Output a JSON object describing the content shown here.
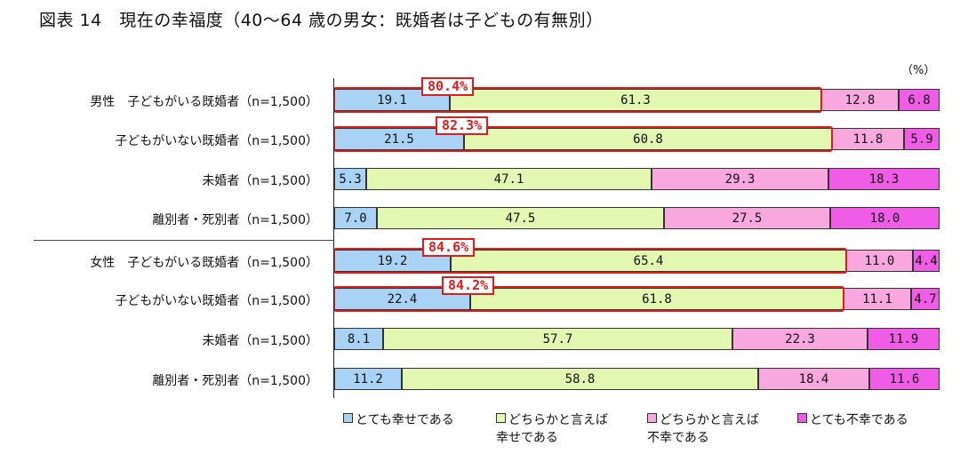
{
  "title": "図表 14　現在の幸福度（40～64 歳の男女：既婚者は子どもの有無別）",
  "unit": "（%）",
  "colors": {
    "series": [
      "#a9d3f5",
      "#e2f7b0",
      "#f8a8df",
      "#f05ce6"
    ],
    "highlight": "#e21b1b"
  },
  "chart_data": {
    "type": "bar",
    "orientation": "horizontal-stacked-100",
    "categories": [
      "男性　子どもがいる既婚者（n=1,500）",
      "子どもがいない既婚者（n=1,500）",
      "未婚者（n=1,500）",
      "離別者・死別者（n=1,500）",
      "女性　子どもがいる既婚者（n=1,500）",
      "子どもがいない既婚者（n=1,500）",
      "未婚者（n=1,500）",
      "離別者・死別者（n=1,500）"
    ],
    "value_labels": [
      [
        "19.1",
        "61.3",
        "12.8",
        "6.8"
      ],
      [
        "21.5",
        "60.8",
        "11.8",
        "5.9"
      ],
      [
        "5.3",
        "47.1",
        "29.3",
        "18.3"
      ],
      [
        "7.0",
        "47.5",
        "27.5",
        "18.0"
      ],
      [
        "19.2",
        "65.4",
        "11.0",
        "4.4"
      ],
      [
        "22.4",
        "61.8",
        "11.1",
        "4.7"
      ],
      [
        "8.1",
        "57.7",
        "22.3",
        "11.9"
      ],
      [
        "11.2",
        "58.8",
        "18.4",
        "11.6"
      ]
    ],
    "series": [
      {
        "name": "とても幸せである",
        "values": [
          19.1,
          21.5,
          5.3,
          7.0,
          19.2,
          22.4,
          8.1,
          11.2
        ]
      },
      {
        "name": "どちらかと言えば幸せである",
        "values": [
          61.3,
          60.8,
          47.1,
          47.5,
          65.4,
          61.8,
          57.7,
          58.8
        ]
      },
      {
        "name": "どちらかと言えば不幸である",
        "values": [
          12.8,
          11.8,
          29.3,
          27.5,
          11.0,
          11.1,
          22.3,
          18.4
        ]
      },
      {
        "name": "とても不幸である",
        "values": [
          6.8,
          5.9,
          18.3,
          18.0,
          4.4,
          4.7,
          11.9,
          11.6
        ]
      }
    ],
    "xlim": [
      0,
      100
    ],
    "highlights": [
      {
        "row": 0,
        "label": "80.4%"
      },
      {
        "row": 1,
        "label": "82.3%"
      },
      {
        "row": 4,
        "label": "84.6%"
      },
      {
        "row": 5,
        "label": "84.2%"
      }
    ],
    "legend": [
      {
        "line1": "とても幸せである",
        "line2": ""
      },
      {
        "line1": "どちらかと言えば",
        "line2": "幸せである"
      },
      {
        "line1": "どちらかと言えば",
        "line2": "不幸である"
      },
      {
        "line1": "とても不幸である",
        "line2": ""
      }
    ],
    "legend_position": "bottom"
  }
}
